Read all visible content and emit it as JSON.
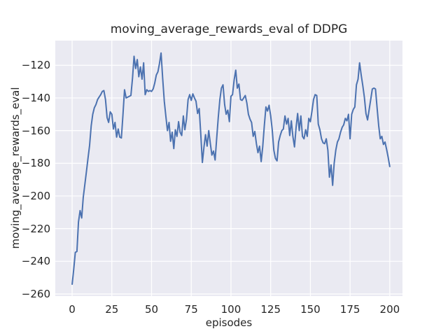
{
  "figure": {
    "background": "#ffffff"
  },
  "chart_data": {
    "type": "line",
    "title": "moving_average_rewards_eval of DDPG",
    "xlabel": "episodes",
    "ylabel": "moving_average_rewards_eval",
    "grid": true,
    "legend_position": "none",
    "axes_background": "#eaeaf2",
    "grid_color": "#ffffff",
    "line_color": "#4c72b0",
    "text_color": "#262626",
    "xlim": [
      -10.6,
      208
    ],
    "ylim": [
      -261.3,
      -104.9
    ],
    "x_ticks": [
      0,
      25,
      50,
      75,
      100,
      125,
      150,
      175,
      200
    ],
    "x_tick_labels": [
      "0",
      "25",
      "50",
      "75",
      "100",
      "125",
      "150",
      "175",
      "200"
    ],
    "y_ticks": [
      -120,
      -140,
      -160,
      -180,
      -200,
      -220,
      -240,
      -260
    ],
    "y_tick_labels": [
      "−120",
      "−140",
      "−160",
      "−180",
      "−200",
      "−220",
      "−240",
      "−260"
    ],
    "series": [
      {
        "name": "moving_average_rewards_eval",
        "x_start": 0,
        "x_step": 1,
        "y": [
          -254,
          -245,
          -234.5,
          -234,
          -216,
          -209,
          -213.5,
          -201,
          -193,
          -185,
          -177,
          -169,
          -157,
          -150,
          -146,
          -144,
          -141,
          -139.5,
          -138,
          -136,
          -135.5,
          -141,
          -152,
          -155,
          -148.5,
          -150,
          -159,
          -155,
          -164,
          -159,
          -164,
          -164.5,
          -150,
          -135,
          -140,
          -139.5,
          -139,
          -138.5,
          -128,
          -114.5,
          -122,
          -116.5,
          -127,
          -121,
          -128.5,
          -118.5,
          -138,
          -135,
          -136,
          -135.5,
          -136,
          -134.5,
          -131,
          -126,
          -124,
          -119,
          -112.5,
          -128,
          -142,
          -151,
          -160,
          -155,
          -166.5,
          -161,
          -171,
          -159.5,
          -163.5,
          -154.5,
          -161,
          -163,
          -151,
          -159.5,
          -153,
          -141,
          -138,
          -141.5,
          -137.5,
          -140,
          -142,
          -149.5,
          -146.5,
          -162,
          -179.5,
          -170,
          -162.5,
          -169.5,
          -160,
          -168,
          -175,
          -172.5,
          -178,
          -165,
          -152,
          -141,
          -134,
          -132,
          -144,
          -150,
          -147.5,
          -154.5,
          -139,
          -138,
          -129,
          -123,
          -134,
          -131.5,
          -141,
          -141.5,
          -140,
          -138.5,
          -143,
          -150,
          -153,
          -155,
          -163.5,
          -160.5,
          -168,
          -173.5,
          -169.5,
          -179,
          -170,
          -157,
          -145.5,
          -148,
          -144.5,
          -151,
          -159.5,
          -172,
          -177,
          -178.5,
          -167,
          -163,
          -160,
          -159,
          -151,
          -156,
          -152.5,
          -163,
          -154,
          -163.5,
          -170,
          -158,
          -149.5,
          -160,
          -151,
          -163.5,
          -165,
          -159.5,
          -163.5,
          -152.5,
          -154.5,
          -148,
          -141,
          -138,
          -138.5,
          -156,
          -159.5,
          -165,
          -167.5,
          -168,
          -165,
          -172,
          -188.5,
          -181,
          -193.5,
          -180,
          -172,
          -167,
          -165,
          -161,
          -158,
          -156.5,
          -152.5,
          -154,
          -150,
          -165,
          -150,
          -147,
          -145.5,
          -132,
          -128.5,
          -118.5,
          -126,
          -132.5,
          -139.5,
          -149.5,
          -153.5,
          -147,
          -141,
          -134.5,
          -134,
          -134.5,
          -146,
          -157,
          -165,
          -163.5,
          -168.5,
          -167,
          -171.5,
          -176.5,
          -182
        ]
      }
    ]
  }
}
